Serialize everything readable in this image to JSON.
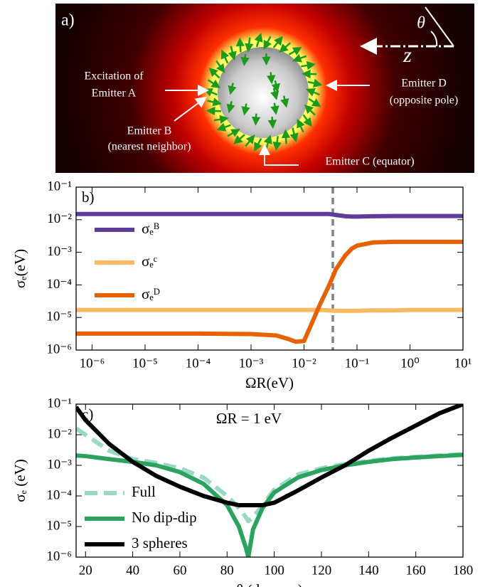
{
  "chart_data": [
    {
      "type": "diagram",
      "label": "a)",
      "annotations": [
        "Excitation of",
        "Emitter A",
        "Emitter B",
        "(nearest neighbor)",
        "Emitter C (equator)",
        "Emitter D",
        "(opposite pole)",
        "θ",
        "z"
      ]
    },
    {
      "type": "line",
      "label": "b)",
      "xlabel": "ΩR(eV)",
      "ylabel": "σₑ(eV)",
      "xscale": "log",
      "yscale": "log",
      "legend": "center left",
      "xlim": [
        5e-07,
        10
      ],
      "ylim": [
        1e-06,
        0.1
      ],
      "xticks": [
        {
          "value": 1e-06,
          "label": "10⁻⁶"
        },
        {
          "value": 1e-05,
          "label": "10⁻⁵"
        },
        {
          "value": 0.0001,
          "label": "10⁻⁴"
        },
        {
          "value": 0.001,
          "label": "10⁻³"
        },
        {
          "value": 0.01,
          "label": "10⁻²"
        },
        {
          "value": 0.1,
          "label": "10⁻¹"
        },
        {
          "value": 1,
          "label": "10⁰"
        },
        {
          "value": 10,
          "label": "10¹"
        }
      ],
      "yticks": [
        {
          "value": 1e-06,
          "label": "10⁻⁶"
        },
        {
          "value": 1e-05,
          "label": "10⁻⁵"
        },
        {
          "value": 0.0001,
          "label": "10⁻⁴"
        },
        {
          "value": 0.001,
          "label": "10⁻³"
        },
        {
          "value": 0.01,
          "label": "10⁻²"
        },
        {
          "value": 0.1,
          "label": "10⁻¹"
        }
      ],
      "reference_line": {
        "x": 0.035,
        "color": "#808080",
        "style": "dashed"
      },
      "x": [
        5e-07,
        1e-06,
        1e-05,
        0.0001,
        0.001,
        0.003,
        0.005,
        0.007,
        0.01,
        0.013,
        0.02,
        0.03,
        0.04,
        0.06,
        0.08,
        0.1,
        0.2,
        0.5,
        1,
        10
      ],
      "series": [
        {
          "name": "σₑᴮ",
          "color": "#5e3c99",
          "style": "solid",
          "values": [
            0.015,
            0.015,
            0.015,
            0.015,
            0.015,
            0.015,
            0.015,
            0.015,
            0.015,
            0.015,
            0.015,
            0.015,
            0.014,
            0.0128,
            0.0125,
            0.0125,
            0.0128,
            0.013,
            0.013,
            0.013
          ]
        },
        {
          "name": "σₑᶜ",
          "color": "#fdb863",
          "style": "solid",
          "values": [
            1.7e-05,
            1.7e-05,
            1.7e-05,
            1.7e-05,
            1.7e-05,
            1.7e-05,
            1.7e-05,
            1.7e-05,
            1.7e-05,
            1.7e-05,
            1.7e-05,
            1.65e-05,
            1.6e-05,
            1.6e-05,
            1.6e-05,
            1.6e-05,
            1.65e-05,
            1.65e-05,
            1.7e-05,
            1.7e-05
          ]
        },
        {
          "name": "σₑᴰ",
          "color": "#e66101",
          "style": "solid",
          "values": [
            3.2e-06,
            3.2e-06,
            3.2e-06,
            3.2e-06,
            3.1e-06,
            2.8e-06,
            2.2e-06,
            1.8e-06,
            1.9e-06,
            5e-06,
            2.5e-05,
            0.0001,
            0.0003,
            0.0008,
            0.0013,
            0.0016,
            0.002,
            0.0021,
            0.0021,
            0.0021
          ]
        }
      ]
    },
    {
      "type": "line",
      "label": "c)",
      "annotation": "ΩR = 1 eV",
      "xlabel": "θ (degrees)",
      "ylabel": "σₑ (eV)",
      "xscale": "linear",
      "yscale": "log",
      "legend": "lower left",
      "xlim": [
        16,
        180
      ],
      "ylim": [
        1e-06,
        0.1
      ],
      "xticks": [
        20,
        40,
        60,
        80,
        100,
        120,
        140,
        160,
        180
      ],
      "yticks": [
        {
          "value": 1e-06,
          "label": "10⁻⁶"
        },
        {
          "value": 1e-05,
          "label": "10⁻⁵"
        },
        {
          "value": 0.0001,
          "label": "10⁻⁴"
        },
        {
          "value": 0.001,
          "label": "10⁻³"
        },
        {
          "value": 0.01,
          "label": "10⁻²"
        },
        {
          "value": 0.1,
          "label": "10⁻¹"
        }
      ],
      "x": [
        16,
        20,
        30,
        40,
        50,
        60,
        70,
        80,
        85,
        88,
        89,
        91,
        95,
        100,
        110,
        120,
        130,
        140,
        150,
        160,
        170,
        180
      ],
      "series": [
        {
          "name": "Full",
          "color": "#99d8c9",
          "style": "dashed",
          "values": [
            0.016,
            0.01,
            0.003,
            0.0016,
            0.0012,
            0.0008,
            0.0004,
            0.0001,
            4e-05,
            2e-05,
            1.5e-05,
            2e-05,
            5e-05,
            0.00016,
            0.0005,
            0.0008,
            0.0011,
            0.0014,
            0.0017,
            0.0019,
            0.0021,
            0.0023
          ]
        },
        {
          "name": "No dip-dip",
          "color": "#2ca25f",
          "style": "solid",
          "values": [
            0.0021,
            0.002,
            0.0016,
            0.0013,
            0.001,
            0.0006,
            0.00025,
            5e-05,
            1e-05,
            2e-06,
            1e-06,
            8e-06,
            4e-05,
            0.00013,
            0.0004,
            0.0007,
            0.001,
            0.0013,
            0.0016,
            0.0018,
            0.002,
            0.0022
          ]
        },
        {
          "name": "3 spheres",
          "color": "#000000",
          "style": "solid",
          "values": [
            0.08,
            0.03,
            0.005,
            0.0013,
            0.00045,
            0.0002,
            0.0001,
            6e-05,
            5e-05,
            5e-05,
            5e-05,
            5e-05,
            5e-05,
            6e-05,
            0.00015,
            0.0004,
            0.001,
            0.003,
            0.008,
            0.02,
            0.05,
            0.1
          ]
        }
      ]
    }
  ]
}
